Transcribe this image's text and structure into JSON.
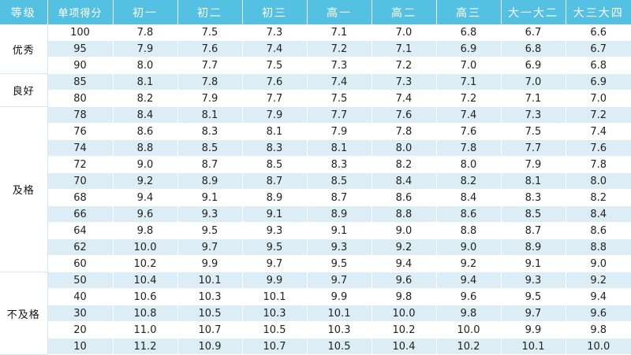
{
  "header": [
    "等级",
    "单项得分",
    "初一",
    "初二",
    "初三",
    "高一",
    "高二",
    "高三",
    "大一大二",
    "大三大四"
  ],
  "groups": [
    {
      "grade": "优秀",
      "rows": [
        [
          "100",
          "7.8",
          "7.5",
          "7.3",
          "7.1",
          "7.0",
          "6.8",
          "6.7",
          "6.6"
        ],
        [
          "95",
          "7.9",
          "7.6",
          "7.4",
          "7.2",
          "7.1",
          "6.9",
          "6.8",
          "6.7"
        ],
        [
          "90",
          "8.0",
          "7.7",
          "7.5",
          "7.3",
          "7.2",
          "7.0",
          "6.9",
          "6.8"
        ]
      ]
    },
    {
      "grade": "良好",
      "rows": [
        [
          "85",
          "8.1",
          "7.8",
          "7.6",
          "7.4",
          "7.3",
          "7.1",
          "7.0",
          "6.9"
        ],
        [
          "80",
          "8.2",
          "7.9",
          "7.7",
          "7.5",
          "7.4",
          "7.2",
          "7.1",
          "7.0"
        ]
      ]
    },
    {
      "grade": "及格",
      "rows": [
        [
          "78",
          "8.4",
          "8.1",
          "7.9",
          "7.7",
          "7.6",
          "7.4",
          "7.3",
          "7.2"
        ],
        [
          "76",
          "8.6",
          "8.3",
          "8.1",
          "7.9",
          "7.8",
          "7.6",
          "7.5",
          "7.4"
        ],
        [
          "74",
          "8.8",
          "8.5",
          "8.3",
          "8.1",
          "8.0",
          "7.8",
          "7.7",
          "7.6"
        ],
        [
          "72",
          "9.0",
          "8.7",
          "8.5",
          "8.3",
          "8.2",
          "8.0",
          "7.9",
          "7.8"
        ],
        [
          "70",
          "9.2",
          "8.9",
          "8.7",
          "8.5",
          "8.4",
          "8.2",
          "8.1",
          "8.0"
        ],
        [
          "68",
          "9.4",
          "9.1",
          "8.9",
          "8.7",
          "8.6",
          "8.4",
          "8.3",
          "8.2"
        ],
        [
          "66",
          "9.6",
          "9.3",
          "9.1",
          "8.9",
          "8.8",
          "8.6",
          "8.5",
          "8.4"
        ],
        [
          "64",
          "9.8",
          "9.5",
          "9.3",
          "9.1",
          "9.0",
          "8.8",
          "8.7",
          "8.6"
        ],
        [
          "62",
          "10.0",
          "9.7",
          "9.5",
          "9.3",
          "9.2",
          "9.0",
          "8.9",
          "8.8"
        ],
        [
          "60",
          "10.2",
          "9.9",
          "9.7",
          "9.5",
          "9.4",
          "9.2",
          "9.1",
          "9.0"
        ]
      ]
    },
    {
      "grade": "不及格",
      "rows": [
        [
          "50",
          "10.4",
          "10.1",
          "9.9",
          "9.7",
          "9.6",
          "9.4",
          "9.3",
          "9.2"
        ],
        [
          "40",
          "10.6",
          "10.3",
          "10.1",
          "9.9",
          "9.8",
          "9.6",
          "9.5",
          "9.4"
        ],
        [
          "30",
          "10.8",
          "10.5",
          "10.3",
          "10.1",
          "10.0",
          "9.8",
          "9.7",
          "9.6"
        ],
        [
          "20",
          "11.0",
          "10.7",
          "10.5",
          "10.3",
          "10.2",
          "10.0",
          "9.9",
          "9.8"
        ],
        [
          "10",
          "11.2",
          "10.9",
          "10.7",
          "10.5",
          "10.4",
          "10.2",
          "10.1",
          "10.0"
        ]
      ]
    }
  ]
}
